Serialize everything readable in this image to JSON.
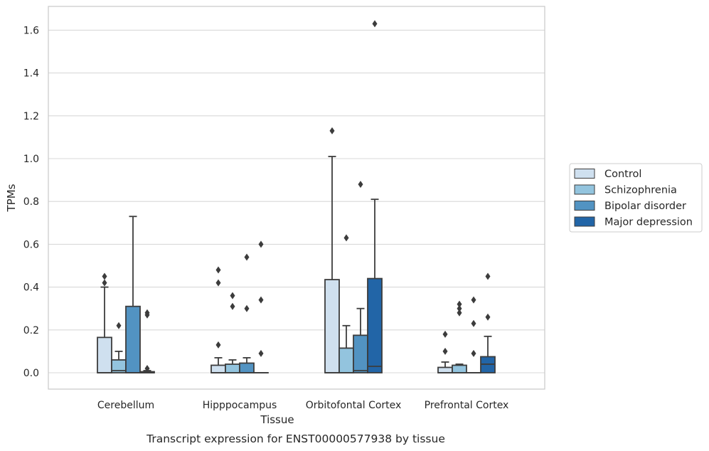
{
  "chart_data": {
    "type": "boxplot",
    "caption": "Transcript expression for ENST00000577938 by tissue",
    "xlabel": "Tissue",
    "ylabel": "TPMs",
    "ylim": [
      -0.08,
      1.72
    ],
    "yticks": [
      "0.0",
      "0.2",
      "0.4",
      "0.6",
      "0.8",
      "1.0",
      "1.2",
      "1.4",
      "1.6"
    ],
    "grid": true,
    "legend_position": "right",
    "categories": [
      "Cerebellum",
      "Hipppocampus",
      "Orbitofontal Cortex",
      "Prefrontal Cortex"
    ],
    "series": [
      {
        "name": "Control",
        "color": "#cfe0ef",
        "boxes": [
          {
            "q1": 0.0,
            "median": 0.0,
            "q3": 0.165,
            "whisker_low": 0.0,
            "whisker_high": 0.4,
            "outliers": [
              0.42,
              0.45
            ]
          },
          {
            "q1": 0.0,
            "median": 0.0,
            "q3": 0.035,
            "whisker_low": 0.0,
            "whisker_high": 0.07,
            "outliers": [
              0.13,
              0.42,
              0.48
            ]
          },
          {
            "q1": 0.0,
            "median": 0.0,
            "q3": 0.435,
            "whisker_low": 0.0,
            "whisker_high": 1.01,
            "outliers": [
              1.13
            ]
          },
          {
            "q1": 0.0,
            "median": 0.0,
            "q3": 0.025,
            "whisker_low": 0.0,
            "whisker_high": 0.05,
            "outliers": [
              0.1,
              0.18
            ]
          }
        ]
      },
      {
        "name": "Schizophrenia",
        "color": "#93c4de",
        "boxes": [
          {
            "q1": 0.0,
            "median": 0.01,
            "q3": 0.06,
            "whisker_low": 0.0,
            "whisker_high": 0.1,
            "outliers": [
              0.22
            ]
          },
          {
            "q1": 0.0,
            "median": 0.0,
            "q3": 0.04,
            "whisker_low": 0.0,
            "whisker_high": 0.06,
            "outliers": [
              0.31,
              0.36
            ]
          },
          {
            "q1": 0.0,
            "median": 0.0,
            "q3": 0.115,
            "whisker_low": 0.0,
            "whisker_high": 0.22,
            "outliers": [
              0.63
            ]
          },
          {
            "q1": 0.0,
            "median": 0.0,
            "q3": 0.035,
            "whisker_low": 0.0,
            "whisker_high": 0.04,
            "outliers": [
              0.28,
              0.3,
              0.32
            ]
          }
        ]
      },
      {
        "name": "Bipolar disorder",
        "color": "#5293c2",
        "boxes": [
          {
            "q1": 0.0,
            "median": 0.0,
            "q3": 0.31,
            "whisker_low": 0.0,
            "whisker_high": 0.73,
            "outliers": []
          },
          {
            "q1": 0.0,
            "median": 0.0,
            "q3": 0.045,
            "whisker_low": 0.0,
            "whisker_high": 0.07,
            "outliers": [
              0.3,
              0.54
            ]
          },
          {
            "q1": 0.0,
            "median": 0.01,
            "q3": 0.175,
            "whisker_low": 0.0,
            "whisker_high": 0.3,
            "outliers": [
              0.88
            ]
          },
          {
            "q1": 0.0,
            "median": 0.0,
            "q3": 0.0,
            "whisker_low": 0.0,
            "whisker_high": 0.0,
            "outliers": [
              0.09,
              0.23,
              0.34
            ]
          }
        ]
      },
      {
        "name": "Major depression",
        "color": "#2265a7",
        "boxes": [
          {
            "q1": 0.0,
            "median": 0.0,
            "q3": 0.005,
            "whisker_low": 0.0,
            "whisker_high": 0.01,
            "outliers": [
              0.02,
              0.27,
              0.28
            ]
          },
          {
            "q1": 0.0,
            "median": 0.0,
            "q3": 0.0,
            "whisker_low": 0.0,
            "whisker_high": 0.0,
            "outliers": [
              0.09,
              0.34,
              0.6
            ]
          },
          {
            "q1": 0.0,
            "median": 0.03,
            "q3": 0.44,
            "whisker_low": 0.0,
            "whisker_high": 0.81,
            "outliers": [
              1.63
            ]
          },
          {
            "q1": 0.0,
            "median": 0.04,
            "q3": 0.075,
            "whisker_low": 0.0,
            "whisker_high": 0.17,
            "outliers": [
              0.26,
              0.45
            ]
          }
        ]
      }
    ]
  }
}
